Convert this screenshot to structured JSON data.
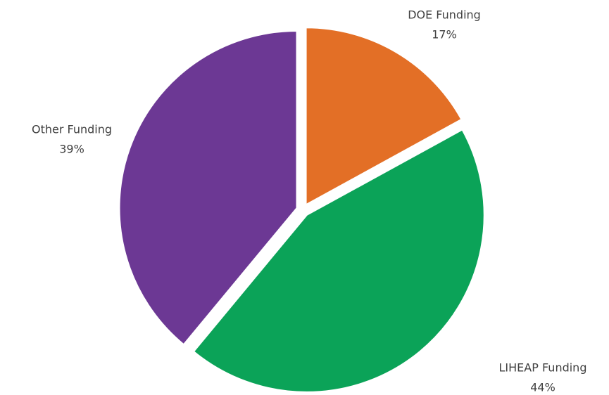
{
  "chart_data": {
    "type": "pie",
    "categories": [
      "DOE Funding",
      "LIHEAP Funding",
      "Other Funding"
    ],
    "values": [
      17,
      44,
      39
    ],
    "value_labels": [
      "17%",
      "44%",
      "39%"
    ],
    "colors": [
      "#e36f26",
      "#0ba358",
      "#6c3894"
    ]
  }
}
